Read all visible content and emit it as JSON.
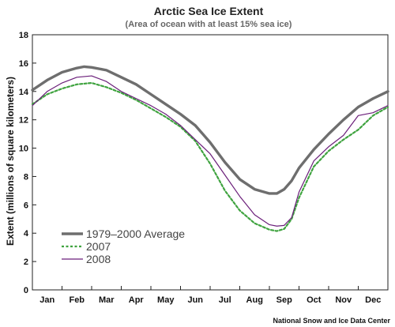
{
  "chart_data": {
    "type": "line",
    "title": "Arctic Sea Ice Extent",
    "subtitle": "(Area of ocean with at least 15% sea ice)",
    "xlabel": "",
    "ylabel": "Extent (millions of square kilometers)",
    "ylim": [
      0,
      18
    ],
    "yticks": [
      0,
      2,
      4,
      6,
      8,
      10,
      12,
      14,
      16,
      18
    ],
    "xlim": [
      0,
      12
    ],
    "month_labels": [
      "Jan",
      "Feb",
      "Mar",
      "Apr",
      "May",
      "Jun",
      "Jul",
      "Aug",
      "Sep",
      "Oct",
      "Nov",
      "Dec"
    ],
    "grid": false,
    "legend_position": "bottom-left",
    "source": "National Snow and Ice Data Center",
    "series": [
      {
        "name": "1979–2000 Average",
        "color": "#6e6e6e",
        "style": "solid-thick",
        "x": [
          0,
          0.5,
          1.0,
          1.5,
          1.75,
          2.0,
          2.5,
          3.0,
          3.5,
          4.0,
          4.5,
          5.0,
          5.5,
          6.0,
          6.5,
          7.0,
          7.5,
          8.0,
          8.25,
          8.5,
          8.75,
          9.0,
          9.5,
          10.0,
          10.5,
          11.0,
          11.5,
          12.0
        ],
        "y": [
          14.1,
          14.8,
          15.35,
          15.65,
          15.75,
          15.7,
          15.5,
          15.0,
          14.5,
          13.8,
          13.1,
          12.4,
          11.6,
          10.4,
          9.0,
          7.8,
          7.1,
          6.8,
          6.8,
          7.1,
          7.7,
          8.6,
          9.9,
          11.0,
          12.0,
          12.9,
          13.5,
          14.0
        ]
      },
      {
        "name": "2007",
        "color": "#3fa33f",
        "style": "dashed",
        "x": [
          0,
          0.5,
          1.0,
          1.5,
          2.0,
          2.5,
          3.0,
          3.5,
          4.0,
          4.5,
          5.0,
          5.5,
          6.0,
          6.5,
          7.0,
          7.5,
          8.0,
          8.25,
          8.5,
          8.75,
          9.0,
          9.5,
          10.0,
          10.5,
          11.0,
          11.5,
          12.0
        ],
        "y": [
          13.1,
          13.8,
          14.2,
          14.5,
          14.6,
          14.3,
          13.9,
          13.4,
          12.8,
          12.2,
          11.5,
          10.5,
          8.9,
          7.0,
          5.6,
          4.7,
          4.25,
          4.15,
          4.3,
          5.0,
          6.5,
          8.7,
          9.8,
          10.6,
          11.3,
          12.3,
          12.9
        ]
      },
      {
        "name": "2008",
        "color": "#6b1f7a",
        "style": "solid-thin",
        "x": [
          0,
          0.5,
          1.0,
          1.25,
          1.5,
          2.0,
          2.5,
          3.0,
          3.5,
          4.0,
          4.5,
          5.0,
          5.5,
          6.0,
          6.5,
          7.0,
          7.5,
          8.0,
          8.25,
          8.5,
          8.75,
          9.0,
          9.5,
          10.0,
          10.5,
          11.0,
          11.5,
          12.0
        ],
        "y": [
          13.0,
          14.0,
          14.6,
          14.8,
          15.0,
          15.1,
          14.7,
          14.0,
          13.5,
          13.0,
          12.4,
          11.6,
          10.6,
          9.6,
          8.1,
          6.6,
          5.3,
          4.6,
          4.5,
          4.55,
          5.1,
          6.9,
          9.1,
          10.1,
          10.9,
          12.3,
          12.5,
          13.0
        ]
      }
    ]
  }
}
